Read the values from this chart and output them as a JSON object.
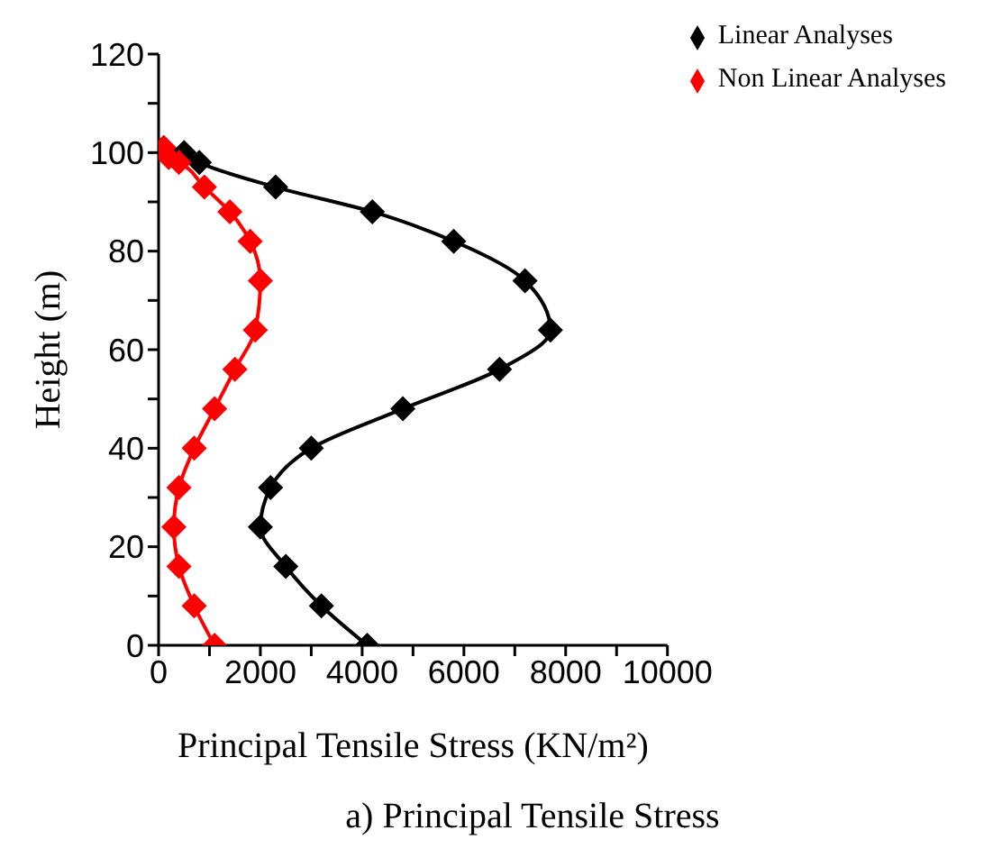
{
  "chart_data": {
    "type": "line",
    "title": "a) Principal Tensile Stress",
    "xlabel": "Principal Tensile Stress (KN/m²)",
    "ylabel": "Height (m)",
    "series": [
      {
        "name": "Linear Analyses",
        "color": "#000000",
        "x": [
          4100,
          3200,
          2500,
          2000,
          2200,
          3000,
          4800,
          6700,
          7700,
          7200,
          5800,
          4200,
          2300,
          800,
          500,
          100
        ],
        "values": [
          0,
          8,
          16,
          24,
          32,
          40,
          48,
          56,
          64,
          74,
          82,
          88,
          93,
          98,
          100,
          101
        ]
      },
      {
        "name": "Non Linear Analyses",
        "color": "#ff0000",
        "x": [
          1100,
          700,
          400,
          300,
          400,
          700,
          1100,
          1500,
          1900,
          2000,
          1800,
          1400,
          900,
          400,
          200,
          100
        ],
        "values": [
          0,
          8,
          16,
          24,
          32,
          40,
          48,
          56,
          64,
          74,
          82,
          88,
          93,
          98,
          99,
          101
        ]
      }
    ],
    "xlim": [
      0,
      10000
    ],
    "xticks": [
      0,
      {
        "value": 1000,
        "label": null
      },
      2000,
      {
        "value": 3000,
        "label": null
      },
      4000,
      {
        "value": 5000,
        "label": null
      },
      6000,
      {
        "value": 7000,
        "label": null
      },
      8000,
      {
        "value": 9000,
        "label": null
      },
      10000
    ],
    "ylim": [
      0,
      120
    ],
    "yticks": [
      0,
      {
        "value": 10,
        "label": null
      },
      20,
      {
        "value": 30,
        "label": null
      },
      40,
      {
        "value": 50,
        "label": null
      },
      60,
      {
        "value": 70,
        "label": null
      },
      80,
      {
        "value": 90,
        "label": null
      },
      100,
      {
        "value": 110,
        "label": null
      },
      120
    ],
    "grid": false,
    "legend": "top right",
    "marker": "diamond",
    "line_style": "solid"
  }
}
